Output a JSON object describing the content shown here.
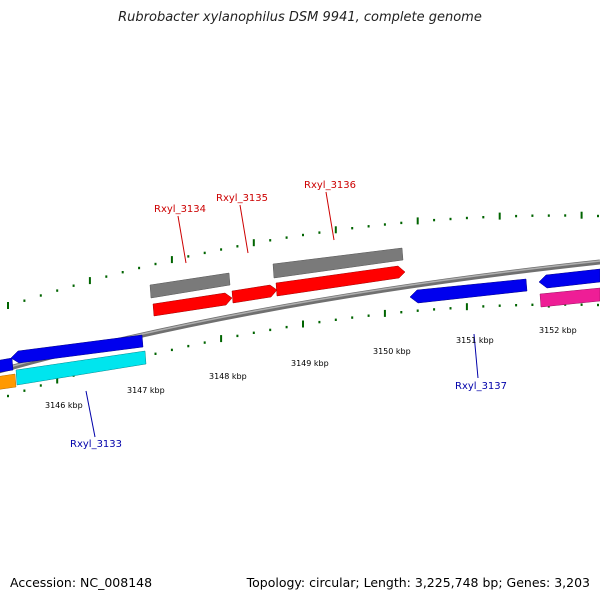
{
  "header": {
    "title": "Rubrobacter xylanophilus DSM 9941, complete genome"
  },
  "footer": {
    "accession": "Accession: NC_008148",
    "summary": "Topology: circular; Length: 3,225,748 bp; Genes: 3,203"
  },
  "colors": {
    "forward_cds": "#ff0000",
    "forward_other": "#808080",
    "reverse_cds": "#0000ee",
    "cyan_cds": "#00e5ee",
    "orange_cds": "#ff9900",
    "magenta_cds": "#ee1e96",
    "forward_label": "#cc0000",
    "reverse_label": "#0000aa",
    "tick": "#006400",
    "backbone": "#808080"
  },
  "scale": {
    "ticks": [
      {
        "label": "3146 kbp"
      },
      {
        "label": "3147 kbp"
      },
      {
        "label": "3148 kbp"
      },
      {
        "label": "3149 kbp"
      },
      {
        "label": "3150 kbp"
      },
      {
        "label": "3151 kbp"
      },
      {
        "label": "3152 kbp"
      }
    ]
  },
  "genes": {
    "rxyl_3133": "Rxyl_3133",
    "rxyl_3134": "Rxyl_3134",
    "rxyl_3135": "Rxyl_3135",
    "rxyl_3136": "Rxyl_3136",
    "rxyl_3137": "Rxyl_3137"
  }
}
